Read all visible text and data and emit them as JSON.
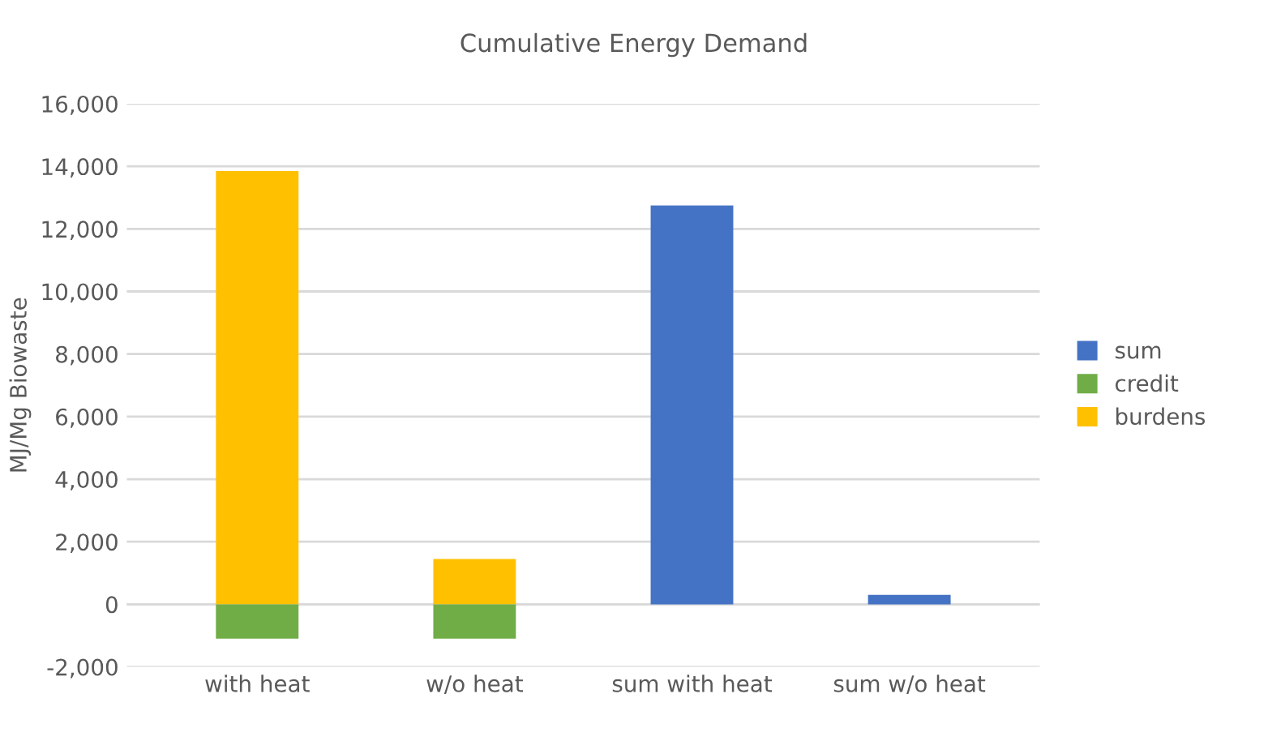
{
  "chart_data": {
    "type": "bar",
    "title": "Cumulative Energy Demand",
    "ylabel": "MJ/Mg Biowaste",
    "categories": [
      "with heat",
      "w/o heat",
      "sum with heat",
      "sum w/o heat"
    ],
    "stacked": true,
    "series": [
      {
        "name": "burdens",
        "color": "#ffc000",
        "values": [
          13850,
          1450,
          null,
          null
        ]
      },
      {
        "name": "credit",
        "color": "#70ad47",
        "values": [
          -1100,
          -1100,
          null,
          null
        ]
      },
      {
        "name": "sum",
        "color": "#4472c4",
        "values": [
          null,
          null,
          12750,
          300
        ]
      }
    ],
    "ylim": [
      -2000,
      16000
    ],
    "yticks": [
      {
        "value": -2000,
        "label": "-2,000"
      },
      0,
      {
        "value": 2000,
        "label": "2,000"
      },
      {
        "value": 4000,
        "label": "4,000"
      },
      {
        "value": 6000,
        "label": "6,000"
      },
      {
        "value": 8000,
        "label": "8,000"
      },
      {
        "value": 10000,
        "label": "10,000"
      },
      {
        "value": 12000,
        "label": "12,000"
      },
      {
        "value": 14000,
        "label": "14,000"
      },
      {
        "value": 16000,
        "label": "16,000"
      }
    ],
    "grid": "y",
    "legend": "right"
  }
}
